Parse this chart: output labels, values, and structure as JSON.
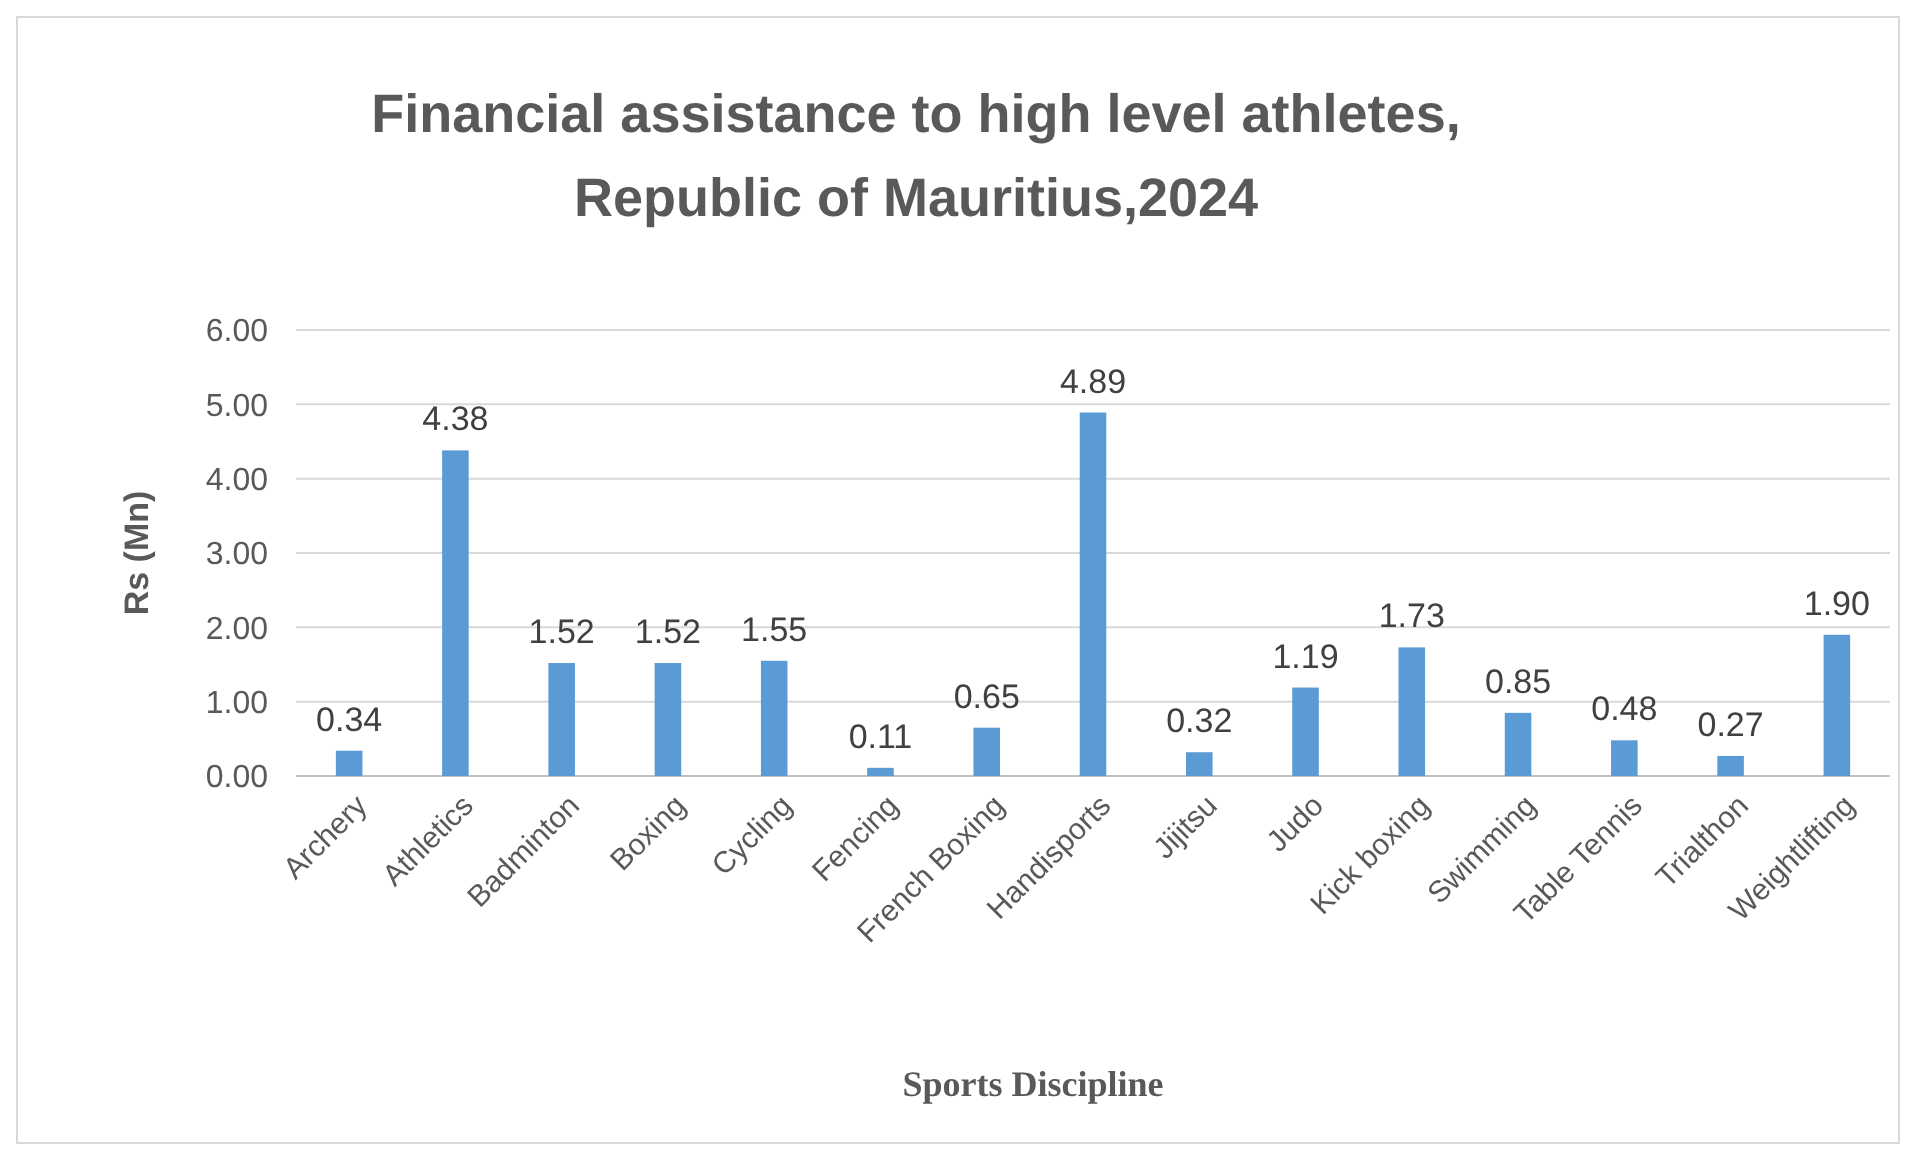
{
  "chart_data": {
    "type": "bar",
    "title": "Financial assistance to high level athletes, Republic of Mauritius,2024",
    "xlabel": "Sports Discipline",
    "ylabel": "Rs (Mn)",
    "categories": [
      "Archery",
      "Athletics",
      "Badminton",
      "Boxing",
      "Cycling",
      "Fencing",
      "French Boxing",
      "Handisports",
      "Jijitsu",
      "Judo",
      "Kick boxing",
      "Swimming",
      "Table Tennis",
      "Trialthon",
      "Weightlifting"
    ],
    "values": [
      0.34,
      4.38,
      1.52,
      1.52,
      1.55,
      0.11,
      0.65,
      4.89,
      0.32,
      1.19,
      1.73,
      0.85,
      0.48,
      0.27,
      1.9
    ],
    "value_labels": [
      "0.34",
      "4.38",
      "1.52",
      "1.52",
      "1.55",
      "0.11",
      "0.65",
      "4.89",
      "0.32",
      "1.19",
      "1.73",
      "0.85",
      "0.48",
      "0.27",
      "1.90"
    ],
    "color": "#5b9bd5",
    "ylim": [
      0,
      6
    ],
    "yticks": [
      {
        "value": 0,
        "label": "0.00"
      },
      {
        "value": 1,
        "label": "1.00"
      },
      {
        "value": 2,
        "label": "2.00"
      },
      {
        "value": 3,
        "label": "3.00"
      },
      {
        "value": 4,
        "label": "4.00"
      },
      {
        "value": 5,
        "label": "5.00"
      },
      {
        "value": 6,
        "label": "6.00"
      }
    ],
    "grid": "y"
  }
}
